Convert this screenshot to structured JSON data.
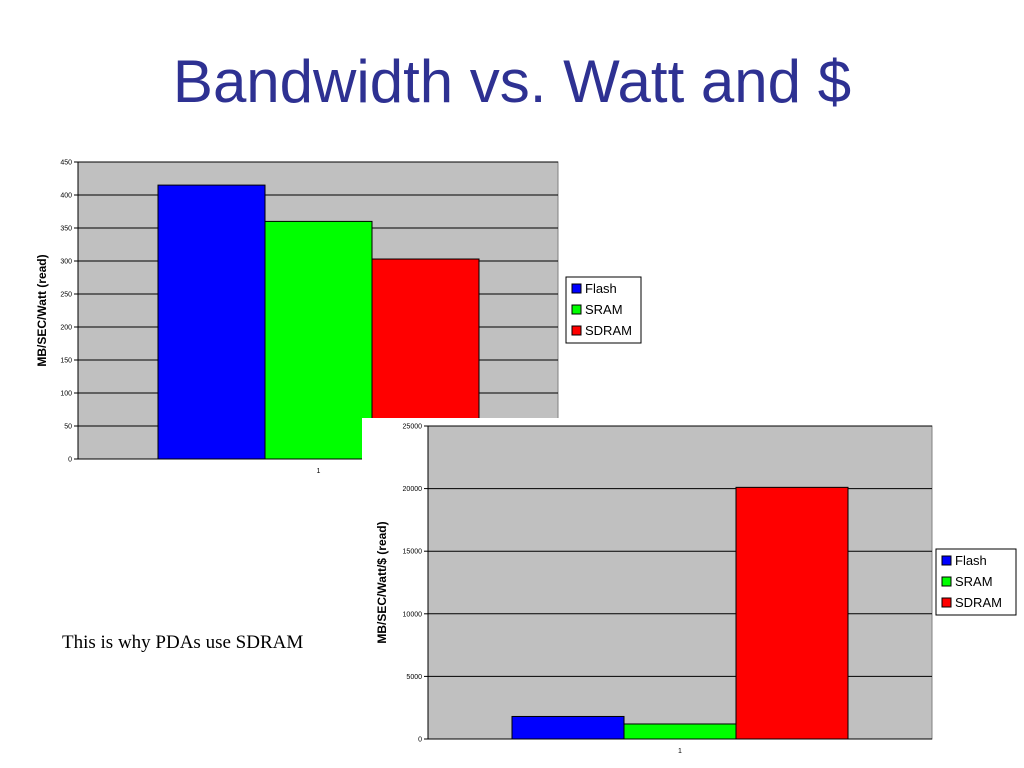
{
  "slide": {
    "title": "Bandwidth vs. Watt and $",
    "caption": "This is why PDAs use SDRAM"
  },
  "colors": {
    "title": "#2e3192",
    "plot_bg": "#c0c0c0",
    "Flash": "#0000ff",
    "SRAM": "#00ff00",
    "SDRAM": "#ff0000"
  },
  "chart_data": [
    {
      "type": "bar",
      "title": "",
      "xlabel": "",
      "ylabel": "MB/SEC/Watt  (read)",
      "categories": [
        "1"
      ],
      "series": [
        {
          "name": "Flash",
          "values": [
            415
          ],
          "color": "#0000ff"
        },
        {
          "name": "SRAM",
          "values": [
            360
          ],
          "color": "#00ff00"
        },
        {
          "name": "SDRAM",
          "values": [
            303
          ],
          "color": "#ff0000"
        }
      ],
      "ylim": [
        0,
        450
      ],
      "yticks": [
        0,
        50,
        100,
        150,
        200,
        250,
        300,
        350,
        400,
        450
      ],
      "grid": true,
      "legend": "right"
    },
    {
      "type": "bar",
      "title": "",
      "xlabel": "",
      "ylabel": "MB/SEC/Watt/$  (read)",
      "categories": [
        "1"
      ],
      "series": [
        {
          "name": "Flash",
          "values": [
            1800
          ],
          "color": "#0000ff"
        },
        {
          "name": "SRAM",
          "values": [
            1200
          ],
          "color": "#00ff00"
        },
        {
          "name": "SDRAM",
          "values": [
            20100
          ],
          "color": "#ff0000"
        }
      ],
      "ylim": [
        0,
        25000
      ],
      "yticks": [
        0,
        5000,
        10000,
        15000,
        20000,
        25000
      ],
      "grid": true,
      "legend": "right"
    }
  ]
}
